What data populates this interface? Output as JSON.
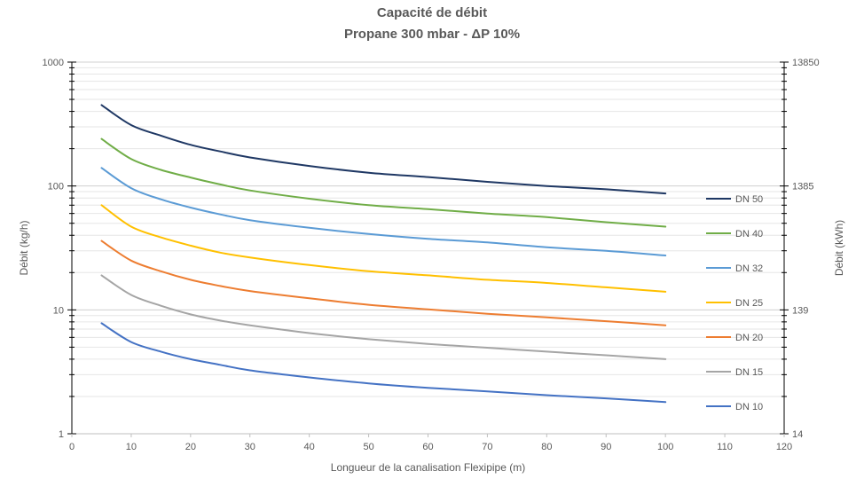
{
  "chart_data": {
    "type": "line",
    "title": "Capacité de débit",
    "subtitle": "Propane 300 mbar - ΔP 10%",
    "xlabel": "Longueur de la canalisation Flexipipe (m)",
    "ylabel": "Débit (kg/h)",
    "y2label": "Débit (kWh)",
    "xlim": [
      0,
      120
    ],
    "xticks": [
      "0",
      "10",
      "20",
      "30",
      "40",
      "50",
      "60",
      "70",
      "80",
      "90",
      "100",
      "110",
      "120"
    ],
    "yscale": "log",
    "ylim": [
      1,
      1000
    ],
    "yticks": [
      "1",
      "10",
      "100",
      "1000"
    ],
    "y2ticks": [
      "14",
      "139",
      "1385",
      "13850"
    ],
    "legend_position": "right",
    "grid": "horizontal",
    "x": [
      5,
      10,
      15,
      20,
      25,
      30,
      40,
      50,
      60,
      70,
      80,
      90,
      100
    ],
    "series": [
      {
        "name": "DN 50",
        "color": "#1F3864",
        "values": [
          450,
          310,
          255,
          215,
          190,
          170,
          145,
          128,
          118,
          108,
          100,
          94,
          87
        ]
      },
      {
        "name": "DN 40",
        "color": "#70AD47",
        "values": [
          240,
          165,
          135,
          117,
          103,
          92,
          79,
          70,
          65,
          60,
          56,
          51,
          47
        ]
      },
      {
        "name": "DN 32",
        "color": "#5B9BD5",
        "values": [
          140,
          96,
          78,
          67,
          59,
          53,
          46,
          41,
          37.5,
          35,
          32,
          30,
          27.5
        ]
      },
      {
        "name": "DN 25",
        "color": "#FFC000",
        "values": [
          70,
          47,
          38.5,
          33,
          29,
          26.5,
          23,
          20.5,
          19,
          17.5,
          16.5,
          15.2,
          14
        ]
      },
      {
        "name": "DN 20",
        "color": "#ED7D31",
        "values": [
          36,
          25,
          20.5,
          17.5,
          15.6,
          14.2,
          12.4,
          11,
          10.1,
          9.3,
          8.7,
          8.1,
          7.5
        ]
      },
      {
        "name": "DN 15",
        "color": "#A5A5A5",
        "values": [
          19,
          13.2,
          10.8,
          9.2,
          8.2,
          7.5,
          6.5,
          5.8,
          5.3,
          4.95,
          4.6,
          4.3,
          4
        ]
      },
      {
        "name": "DN 10",
        "color": "#4472C4",
        "values": [
          7.8,
          5.5,
          4.6,
          4,
          3.6,
          3.25,
          2.85,
          2.55,
          2.35,
          2.2,
          2.05,
          1.93,
          1.8
        ]
      }
    ]
  }
}
